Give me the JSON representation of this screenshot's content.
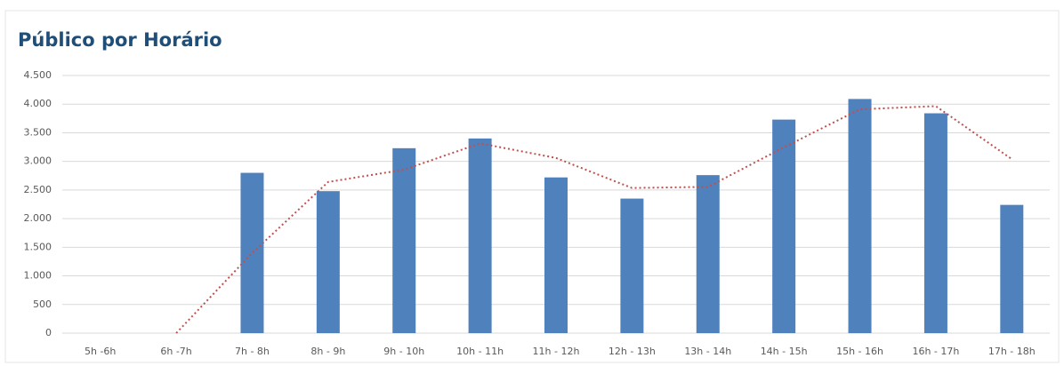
{
  "chart_data": {
    "type": "bar",
    "title": "Público por Horário",
    "categories": [
      "5h -6h",
      "6h -7h",
      "7h - 8h",
      "8h - 9h",
      "9h - 10h",
      "10h - 11h",
      "11h - 12h",
      "12h - 13h",
      "13h - 14h",
      "14h - 15h",
      "15h - 16h",
      "16h - 17h",
      "17h - 18h"
    ],
    "series": [
      {
        "type": "bar",
        "color": "#4f81bd",
        "values": [
          0,
          0,
          2800,
          2480,
          3230,
          3400,
          2720,
          2350,
          2760,
          3730,
          4090,
          3840,
          2240
        ]
      },
      {
        "type": "line",
        "color": "#c0504d",
        "dotted": true,
        "values": [
          null,
          0,
          1400,
          2640,
          2855,
          3315,
          3060,
          2535,
          2555,
          3245,
          3910,
          3965,
          3040
        ]
      }
    ],
    "ylim": [
      0,
      4500
    ],
    "yticks": [
      0,
      500,
      {
        "value": 1000,
        "label": "1.000"
      },
      {
        "value": 1500,
        "label": "1.500"
      },
      {
        "value": 2000,
        "label": "2.000"
      },
      {
        "value": 2500,
        "label": "2.500"
      },
      {
        "value": 3000,
        "label": "3.000"
      },
      {
        "value": 3500,
        "label": "3.500"
      },
      {
        "value": 4000,
        "label": "4.000"
      },
      {
        "value": 4500,
        "label": "4.500"
      }
    ],
    "grid": true
  }
}
